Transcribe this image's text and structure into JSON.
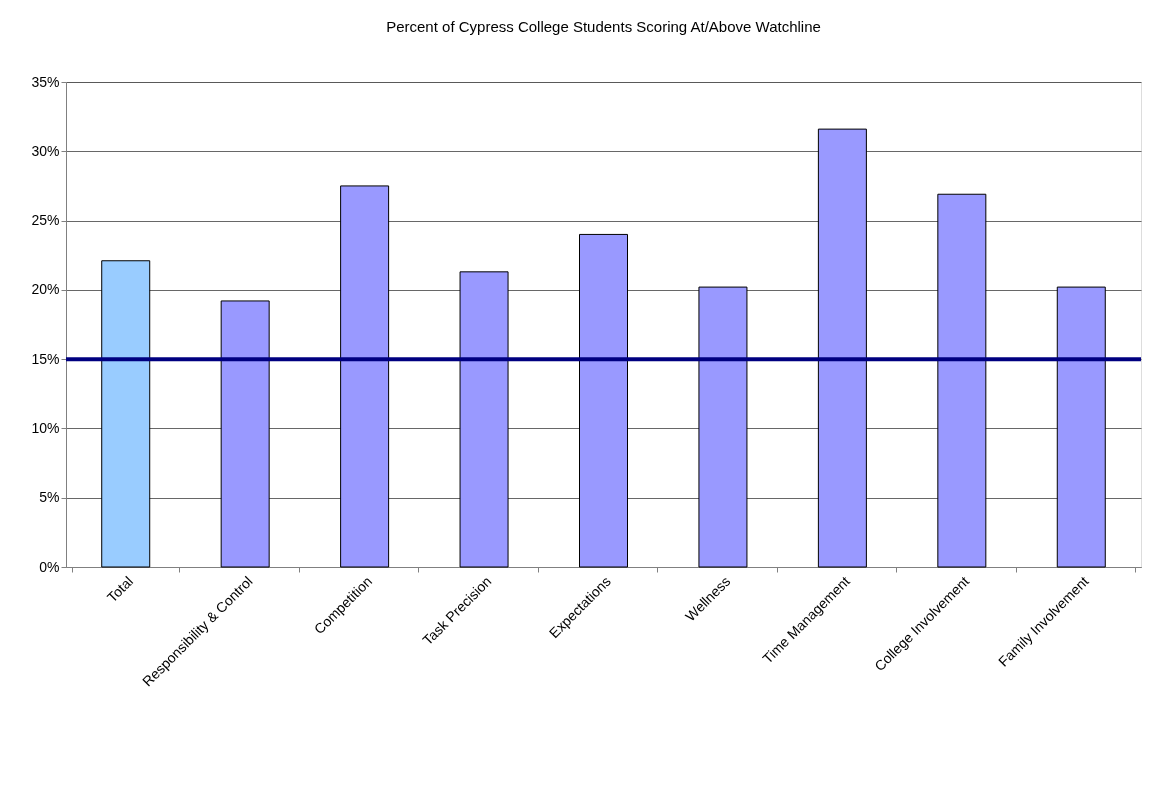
{
  "chart_data": {
    "type": "bar",
    "title": "Percent of Cypress College Students Scoring At/Above Watchline",
    "categories": [
      "Total",
      "Responsibility & Control",
      "Competition",
      "Task Precision",
      "Expectations",
      "Wellness",
      "Time Management",
      "College Involvement",
      "Family Involvement"
    ],
    "values": [
      22.1,
      19.2,
      27.5,
      21.3,
      24.0,
      20.2,
      31.6,
      26.9,
      20.2
    ],
    "colors": [
      "#99ccff",
      "#9999ff",
      "#9999ff",
      "#9999ff",
      "#9999ff",
      "#9999ff",
      "#9999ff",
      "#9999ff",
      "#9999ff"
    ],
    "ylim": [
      0,
      35
    ],
    "yticks": [
      {
        "value": 0,
        "label": "0%"
      },
      {
        "value": 5,
        "label": "5%"
      },
      {
        "value": 10,
        "label": "10%"
      },
      {
        "value": 15,
        "label": "15%"
      },
      {
        "value": 20,
        "label": "20%"
      },
      {
        "value": 25,
        "label": "25%"
      },
      {
        "value": 30,
        "label": "30%"
      },
      {
        "value": 35,
        "label": "35%"
      }
    ],
    "ref_lines": [
      {
        "axis": "y",
        "value": 15,
        "color": "#000080",
        "line_style": "solid"
      }
    ],
    "grid": "y"
  }
}
